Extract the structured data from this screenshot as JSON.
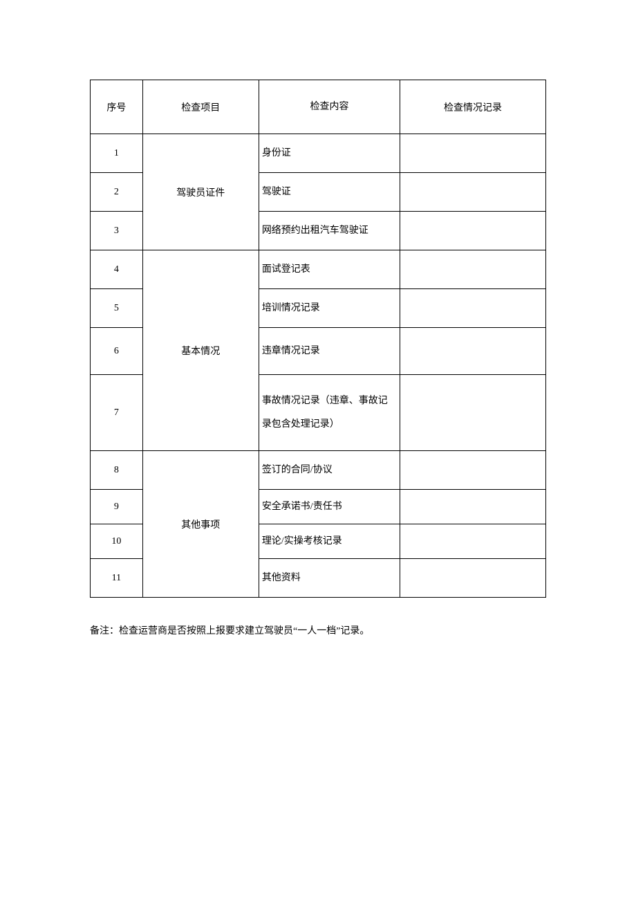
{
  "table": {
    "headers": {
      "num": "序号",
      "item": "检查项目",
      "content": "检查内容",
      "record": "检查情况记录"
    },
    "groups": [
      {
        "item": "驾驶员证件",
        "rows": [
          {
            "num": "1",
            "content": "身份证"
          },
          {
            "num": "2",
            "content": "驾驶证"
          },
          {
            "num": "3",
            "content": "网络预约出租汽车驾驶证"
          }
        ]
      },
      {
        "item": "基本情况",
        "rows": [
          {
            "num": "4",
            "content": "面试登记表"
          },
          {
            "num": "5",
            "content": "培训情况记录"
          },
          {
            "num": "6",
            "content": "违章情况记录"
          },
          {
            "num": "7",
            "content": "事故情况记录（违章、事故记录包含处理记录）"
          }
        ]
      },
      {
        "item": "其他事项",
        "rows": [
          {
            "num": "8",
            "content": "签订的合同/协议"
          },
          {
            "num": "9",
            "content": "安全承诺书/责任书"
          },
          {
            "num": "10",
            "content": "理论/实操考核记录"
          },
          {
            "num": "11",
            "content": "其他资料"
          }
        ]
      }
    ]
  },
  "note": "备注：检查运营商是否按照上报要求建立驾驶员“一人一档”记录。",
  "colors": {
    "border": "#000000",
    "background": "#ffffff",
    "text": "#000000"
  },
  "typography": {
    "font_family": "SimSun",
    "header_fontsize": 14,
    "cell_fontsize": 14,
    "note_fontsize": 14
  }
}
